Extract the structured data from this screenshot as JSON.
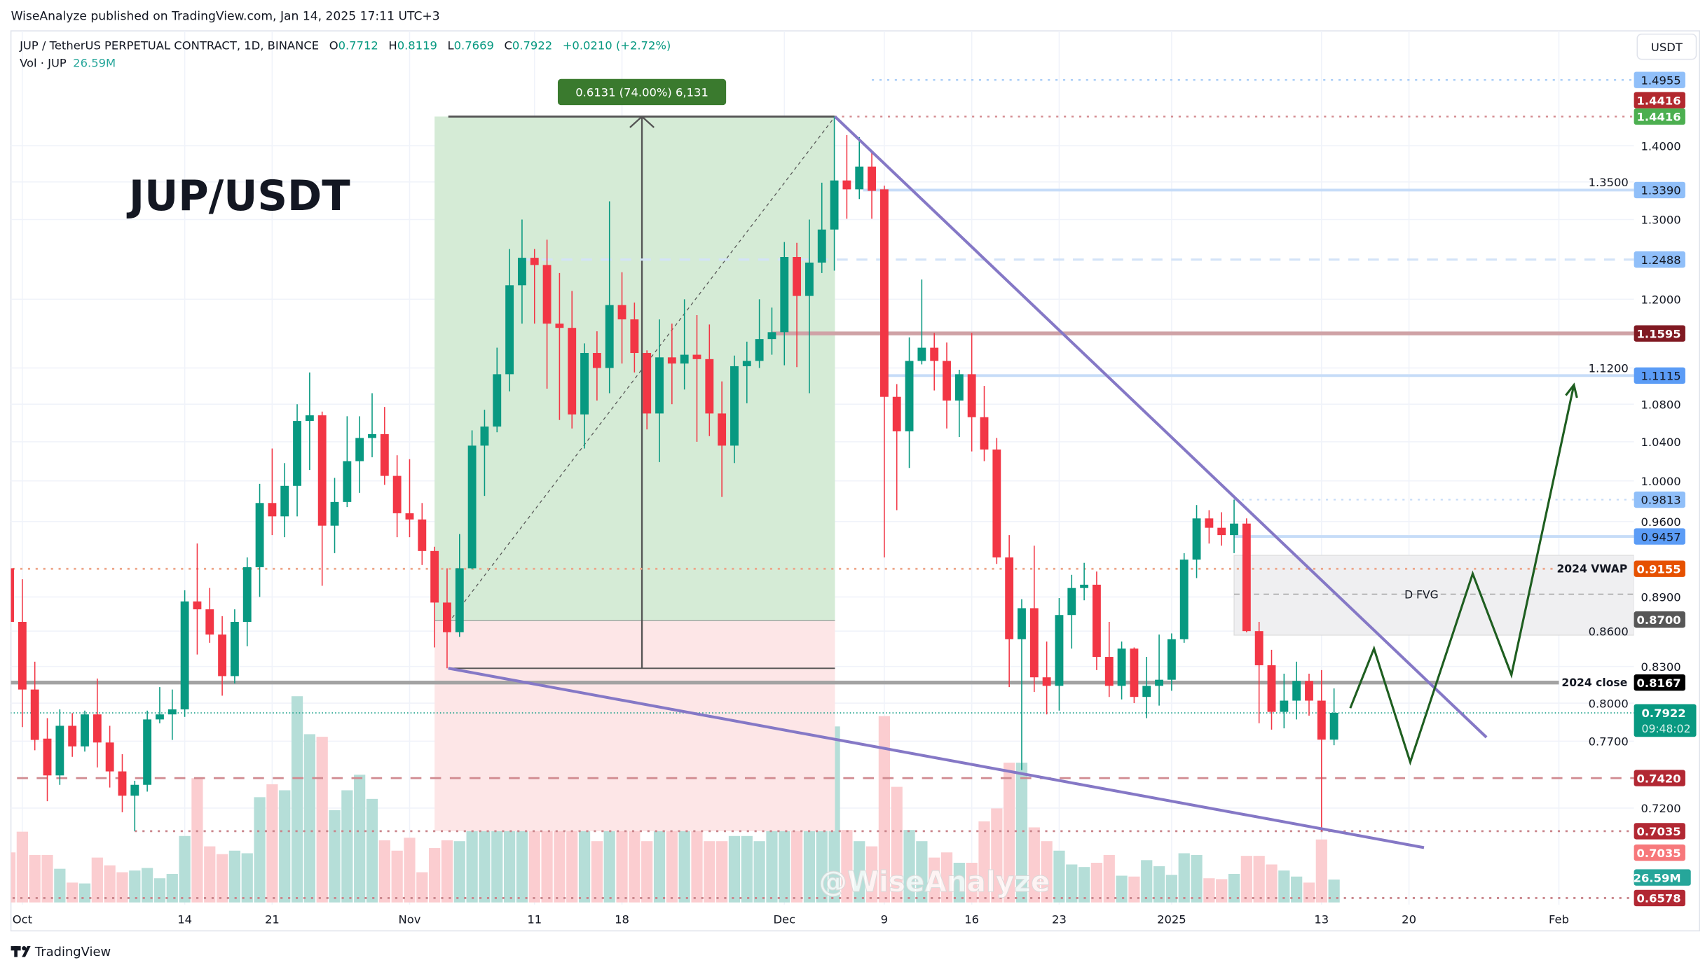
{
  "header": {
    "published": "WiseAnalyze published on TradingView.com, Jan 14, 2025 17:11 UTC+3"
  },
  "legend": {
    "symbol": "JUP / TetherUS PERPETUAL CONTRACT, 1D, BINANCE",
    "o_label": "O",
    "o": "0.7712",
    "h_label": "H",
    "h": "0.8119",
    "l_label": "L",
    "l": "0.7669",
    "c_label": "C",
    "c": "0.7922",
    "change": "+0.0210 (+2.72%)",
    "vol_label": "Vol · JUP",
    "vol": "26.59M"
  },
  "currency_button": "USDT",
  "title": "JUP/USDT",
  "watermark": "@WiseAnalyze",
  "footer": {
    "brand": "TradingView"
  },
  "colors": {
    "up": "#089981",
    "down": "#f23645",
    "up_vol": "#b5ded8",
    "down_vol": "#fbcdd0",
    "trendline": "#8578c6",
    "projection": "#1e5e20"
  },
  "measure_label": "0.6131 (74.00%) 6,131",
  "fvg_label": "D FVG",
  "price_axis": {
    "ticks": [
      "1.4000",
      "1.3500",
      "1.3000",
      "1.2000",
      "1.1200",
      "1.0800",
      "1.0400",
      "1.0000",
      "0.9600",
      "0.8900",
      "0.8600",
      "0.8300",
      "0.8000",
      "0.7700",
      "0.7200"
    ],
    "badges": [
      {
        "label": "1.4955",
        "price": 1.4955,
        "bg": "#90bff9",
        "fg": "#131722"
      },
      {
        "label": "1.4416",
        "price": 1.4655,
        "bg": "#b2282e",
        "fg": "#ffffff"
      },
      {
        "label": "1.4416",
        "price": 1.4416,
        "bg": "#4caf50",
        "fg": "#ffffff"
      },
      {
        "label": "1.3390",
        "price": 1.339,
        "bg": "#90bff9",
        "fg": "#131722"
      },
      {
        "label": "1.2488",
        "price": 1.2488,
        "bg": "#90bff9",
        "fg": "#131722"
      },
      {
        "label": "1.1595",
        "price": 1.1595,
        "bg": "#801922",
        "fg": "#ffffff"
      },
      {
        "label": "1.1115",
        "price": 1.1115,
        "bg": "#5b9cf6",
        "fg": "#131722"
      },
      {
        "label": "0.9813",
        "price": 0.9813,
        "bg": "#90bff9",
        "fg": "#131722"
      },
      {
        "label": "0.9457",
        "price": 0.9457,
        "bg": "#5b9cf6",
        "fg": "#131722"
      },
      {
        "label": "0.9155",
        "price": 0.9155,
        "bg": "#e65100",
        "fg": "#ffffff"
      },
      {
        "label": "0.8700",
        "price": 0.87,
        "bg": "#575757",
        "fg": "#ffffff"
      },
      {
        "label": "0.8167",
        "price": 0.8167,
        "bg": "#000000",
        "fg": "#ffffff"
      },
      {
        "label": "0.7420",
        "price": 0.742,
        "bg": "#b22833",
        "fg": "#ffffff"
      },
      {
        "label": "0.7035",
        "price": 0.7035,
        "bg": "#b22833",
        "fg": "#ffffff"
      },
      {
        "label": "0.7035",
        "price": 0.6885,
        "bg": "#f7787b",
        "fg": "#ffffff"
      },
      {
        "label": "26.59M",
        "price": 0.6715,
        "bg": "#26a69a",
        "fg": "#ffffff"
      },
      {
        "label": "0.6578",
        "price": 0.6578,
        "bg": "#b22833",
        "fg": "#ffffff"
      }
    ],
    "last_price": {
      "label": "0.7922",
      "countdown": "09:48:02",
      "price": 0.7922,
      "bg": "#089981"
    }
  },
  "levels": [
    {
      "name": "level-1-4955",
      "price": 1.4955,
      "from_day": 69,
      "color": "#a9cdf7",
      "style": "dotted",
      "width": 1.5
    },
    {
      "name": "level-1-4416",
      "price": 1.4416,
      "from_day": 66,
      "color": "#d48a8f",
      "style": "dotted",
      "width": 1.5
    },
    {
      "name": "level-1-3390",
      "price": 1.339,
      "from_day": 68.3,
      "color": "#c6dcf8",
      "style": "solid",
      "width": 2.5
    },
    {
      "name": "level-1-2488",
      "price": 1.2488,
      "from_day": 41,
      "color": "#d3e3f8",
      "style": "dashed",
      "width": 2
    },
    {
      "name": "level-1-1595",
      "price": 1.1595,
      "from_day": 61,
      "color": "#cfa2a6",
      "style": "solid",
      "width": 3.5
    },
    {
      "name": "level-1-1115",
      "price": 1.1115,
      "from_day": 70,
      "color": "#c6dcf8",
      "style": "solid",
      "width": 2.5
    },
    {
      "name": "level-0-9813",
      "price": 0.9813,
      "from_day": 98,
      "color": "#c6dcf8",
      "style": "dotted",
      "width": 1.5
    },
    {
      "name": "level-0-9457",
      "price": 0.9457,
      "from_day": 98,
      "color": "#c6dcf8",
      "style": "solid",
      "width": 2.5
    },
    {
      "name": "level-2024-vwap",
      "price": 0.9155,
      "from_day": -1,
      "color": "#eea588",
      "style": "dotted",
      "width": 1.8,
      "label": "2024 VWAP",
      "to_day": 123.5
    },
    {
      "name": "level-2024-close",
      "price": 0.8167,
      "from_day": -1,
      "color": "#a3a3a3",
      "style": "solid",
      "width": 3.5,
      "label": "2024 close",
      "to_day": 124
    },
    {
      "name": "level-current-price",
      "price": 0.7922,
      "from_day": -1,
      "color": "#089981",
      "style": "fine",
      "width": 1
    },
    {
      "name": "level-0-7420",
      "price": 0.742,
      "from_day": -1,
      "color": "#d08a90",
      "style": "dashed",
      "width": 1.8
    },
    {
      "name": "level-0-7035",
      "price": 0.7035,
      "from_day": 10,
      "color": "#c9858b",
      "style": "dotted",
      "width": 1.8
    },
    {
      "name": "level-0-6578",
      "price": 0.6578,
      "from_day": -1,
      "color": "#c9858b",
      "style": "dotted",
      "width": 1.8
    }
  ],
  "fvg": {
    "from_day": 98,
    "top": 0.928,
    "bottom": 0.8565,
    "mid": 0.8925
  },
  "long_position": {
    "from_day": 34,
    "to_day": 66.05,
    "entry": 0.869,
    "target": 1.4416,
    "stop": 0.7035
  },
  "price_range": {
    "from_day": 35.1,
    "to_day": 66.05,
    "low": 0.8285,
    "high": 1.4416,
    "arrow_day": 50.6
  },
  "trendlines": [
    {
      "name": "upper-trendline",
      "points": [
        [
          66.05,
          1.4416
        ],
        [
          118.2,
          0.773
        ]
      ]
    },
    {
      "name": "lower-trendline",
      "points": [
        [
          35.1,
          0.8285
        ],
        [
          113.2,
          0.692
        ]
      ]
    }
  ],
  "projection": [
    [
      107.3,
      0.796
    ],
    [
      109.2,
      0.845
    ],
    [
      112.1,
      0.754
    ],
    [
      117.1,
      0.911
    ],
    [
      120.2,
      0.823
    ],
    [
      125.2,
      1.101
    ]
  ],
  "time_axis": [
    {
      "label": "Oct",
      "day": 1
    },
    {
      "label": "14",
      "day": 14
    },
    {
      "label": "21",
      "day": 21
    },
    {
      "label": "Nov",
      "day": 32
    },
    {
      "label": "11",
      "day": 42
    },
    {
      "label": "18",
      "day": 49
    },
    {
      "label": "Dec",
      "day": 62
    },
    {
      "label": "9",
      "day": 70
    },
    {
      "label": "16",
      "day": 77
    },
    {
      "label": "23",
      "day": 84
    },
    {
      "label": "2025",
      "day": 93
    },
    {
      "label": "13",
      "day": 105
    },
    {
      "label": "20",
      "day": 112
    },
    {
      "label": "Feb",
      "day": 124
    }
  ],
  "chart_data": {
    "type": "candlestick",
    "title": "JUP / TetherUS PERPETUAL CONTRACT, 1D, BINANCE",
    "ylabel": "USDT",
    "yscale": "log",
    "ylim": [
      0.645,
      1.52
    ],
    "fields": [
      "open",
      "high",
      "low",
      "close",
      "volume_millions"
    ],
    "candles": [
      [
        0.916,
        0.925,
        0.86,
        0.868,
        58
      ],
      [
        0.868,
        0.906,
        0.781,
        0.811,
        82
      ],
      [
        0.811,
        0.834,
        0.763,
        0.771,
        55
      ],
      [
        0.772,
        0.788,
        0.725,
        0.744,
        55
      ],
      [
        0.744,
        0.795,
        0.737,
        0.782,
        39
      ],
      [
        0.782,
        0.792,
        0.758,
        0.766,
        23
      ],
      [
        0.766,
        0.794,
        0.762,
        0.791,
        22
      ],
      [
        0.791,
        0.82,
        0.75,
        0.769,
        52
      ],
      [
        0.769,
        0.782,
        0.735,
        0.747,
        43
      ],
      [
        0.747,
        0.76,
        0.717,
        0.729,
        35
      ],
      [
        0.729,
        0.74,
        0.7035,
        0.737,
        37
      ],
      [
        0.737,
        0.794,
        0.732,
        0.787,
        40
      ],
      [
        0.787,
        0.813,
        0.784,
        0.791,
        28
      ],
      [
        0.791,
        0.811,
        0.771,
        0.795,
        33
      ],
      [
        0.795,
        0.896,
        0.789,
        0.886,
        77
      ],
      [
        0.886,
        0.939,
        0.84,
        0.879,
        144
      ],
      [
        0.879,
        0.898,
        0.85,
        0.857,
        65
      ],
      [
        0.857,
        0.873,
        0.806,
        0.822,
        56
      ],
      [
        0.822,
        0.879,
        0.816,
        0.868,
        60
      ],
      [
        0.868,
        0.926,
        0.847,
        0.917,
        57
      ],
      [
        0.917,
        0.997,
        0.89,
        0.978,
        122
      ],
      [
        0.978,
        1.033,
        0.947,
        0.965,
        137
      ],
      [
        0.965,
        1.018,
        0.945,
        0.995,
        130
      ],
      [
        0.995,
        1.08,
        0.965,
        1.062,
        239
      ],
      [
        1.062,
        1.115,
        1.011,
        1.068,
        195
      ],
      [
        1.068,
        1.072,
        0.9,
        0.956,
        192
      ],
      [
        0.956,
        1.003,
        0.93,
        0.979,
        107
      ],
      [
        0.979,
        1.067,
        0.974,
        1.02,
        130
      ],
      [
        1.02,
        1.067,
        0.988,
        1.044,
        148
      ],
      [
        1.044,
        1.092,
        1.024,
        1.048,
        120
      ],
      [
        1.048,
        1.077,
        0.996,
        1.005,
        72
      ],
      [
        1.005,
        1.026,
        0.945,
        0.968,
        60
      ],
      [
        0.968,
        1.022,
        0.945,
        0.962,
        75
      ],
      [
        0.962,
        0.978,
        0.919,
        0.932,
        35
      ],
      [
        0.932,
        0.936,
        0.846,
        0.885,
        63
      ],
      [
        0.885,
        0.916,
        0.8285,
        0.859,
        72
      ],
      [
        0.859,
        0.948,
        0.855,
        0.916,
        71
      ],
      [
        0.916,
        1.052,
        0.915,
        1.036,
        109
      ],
      [
        1.036,
        1.074,
        0.985,
        1.056,
        134
      ],
      [
        1.056,
        1.143,
        1.05,
        1.113,
        172
      ],
      [
        1.113,
        1.262,
        1.094,
        1.217,
        103
      ],
      [
        1.217,
        1.3,
        1.171,
        1.251,
        160
      ],
      [
        1.251,
        1.262,
        1.171,
        1.242,
        175
      ],
      [
        1.242,
        1.274,
        1.097,
        1.171,
        134
      ],
      [
        1.171,
        1.232,
        1.063,
        1.166,
        172
      ],
      [
        1.166,
        1.21,
        1.054,
        1.069,
        153
      ],
      [
        1.069,
        1.148,
        1.033,
        1.137,
        109
      ],
      [
        1.137,
        1.162,
        1.084,
        1.12,
        71
      ],
      [
        1.12,
        1.324,
        1.092,
        1.193,
        254
      ],
      [
        1.193,
        1.233,
        1.125,
        1.176,
        160
      ],
      [
        1.176,
        1.196,
        1.115,
        1.137,
        84
      ],
      [
        1.137,
        1.14,
        1.053,
        1.07,
        71
      ],
      [
        1.07,
        1.176,
        1.019,
        1.132,
        134
      ],
      [
        1.132,
        1.171,
        1.08,
        1.125,
        84
      ],
      [
        1.125,
        1.2,
        1.096,
        1.135,
        103
      ],
      [
        1.135,
        1.181,
        1.04,
        1.13,
        103
      ],
      [
        1.13,
        1.17,
        1.046,
        1.07,
        71
      ],
      [
        1.07,
        1.105,
        0.984,
        1.036,
        71
      ],
      [
        1.036,
        1.134,
        1.018,
        1.122,
        77
      ],
      [
        1.122,
        1.15,
        1.081,
        1.128,
        77
      ],
      [
        1.128,
        1.2,
        1.12,
        1.153,
        71
      ],
      [
        1.153,
        1.19,
        1.135,
        1.161,
        109
      ],
      [
        1.161,
        1.271,
        1.123,
        1.252,
        109
      ],
      [
        1.252,
        1.27,
        1.121,
        1.204,
        84
      ],
      [
        1.204,
        1.3,
        1.092,
        1.245,
        191
      ],
      [
        1.245,
        1.349,
        1.232,
        1.287,
        182
      ],
      [
        1.287,
        1.4416,
        1.235,
        1.352,
        204
      ],
      [
        1.352,
        1.415,
        1.301,
        1.34,
        84
      ],
      [
        1.34,
        1.412,
        1.327,
        1.371,
        71
      ],
      [
        1.371,
        1.39,
        1.301,
        1.338,
        65
      ],
      [
        1.34,
        1.345,
        0.926,
        1.088,
        216
      ],
      [
        1.088,
        1.102,
        0.971,
        1.051,
        134
      ],
      [
        1.051,
        1.155,
        1.013,
        1.128,
        84
      ],
      [
        1.128,
        1.224,
        1.124,
        1.143,
        71
      ],
      [
        1.143,
        1.16,
        1.095,
        1.128,
        52
      ],
      [
        1.128,
        1.149,
        1.054,
        1.084,
        58
      ],
      [
        1.084,
        1.118,
        1.045,
        1.113,
        46
      ],
      [
        1.113,
        1.16,
        1.03,
        1.066,
        46
      ],
      [
        1.066,
        1.1,
        1.02,
        1.032,
        94
      ],
      [
        1.032,
        1.044,
        0.92,
        0.926,
        109
      ],
      [
        0.926,
        0.947,
        0.813,
        0.853,
        162
      ],
      [
        0.853,
        0.888,
        0.748,
        0.88,
        162
      ],
      [
        0.88,
        0.937,
        0.809,
        0.821,
        87
      ],
      [
        0.821,
        0.851,
        0.791,
        0.814,
        71
      ],
      [
        0.814,
        0.889,
        0.794,
        0.874,
        60
      ],
      [
        0.874,
        0.91,
        0.845,
        0.898,
        44
      ],
      [
        0.898,
        0.921,
        0.887,
        0.901,
        41
      ],
      [
        0.901,
        0.913,
        0.827,
        0.838,
        46
      ],
      [
        0.838,
        0.868,
        0.805,
        0.814,
        55
      ],
      [
        0.814,
        0.851,
        0.803,
        0.845,
        31
      ],
      [
        0.845,
        0.846,
        0.8,
        0.805,
        30
      ],
      [
        0.805,
        0.838,
        0.788,
        0.814,
        49
      ],
      [
        0.814,
        0.857,
        0.798,
        0.819,
        42
      ],
      [
        0.819,
        0.858,
        0.81,
        0.853,
        32
      ],
      [
        0.853,
        0.93,
        0.85,
        0.924,
        57
      ],
      [
        0.924,
        0.976,
        0.907,
        0.963,
        55
      ],
      [
        0.963,
        0.971,
        0.939,
        0.954,
        28
      ],
      [
        0.954,
        0.969,
        0.937,
        0.947,
        27
      ],
      [
        0.947,
        0.9813,
        0.93,
        0.958,
        33
      ],
      [
        0.958,
        0.963,
        0.859,
        0.86,
        54
      ],
      [
        0.86,
        0.868,
        0.784,
        0.831,
        54
      ],
      [
        0.831,
        0.844,
        0.779,
        0.793,
        44
      ],
      [
        0.793,
        0.824,
        0.78,
        0.802,
        37
      ],
      [
        0.802,
        0.834,
        0.787,
        0.818,
        30
      ],
      [
        0.818,
        0.824,
        0.79,
        0.802,
        23
      ],
      [
        0.802,
        0.827,
        0.7035,
        0.7712,
        73
      ],
      [
        0.7712,
        0.8119,
        0.7669,
        0.7922,
        26.59
      ]
    ]
  }
}
